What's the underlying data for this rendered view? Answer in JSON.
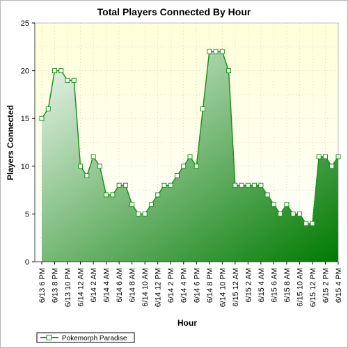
{
  "chart_data": {
    "type": "area",
    "title": "Total Players Connected By Hour",
    "xlabel": "Hour",
    "ylabel": "Players Connected",
    "ylim": [
      0,
      25
    ],
    "yticks": [
      0,
      5,
      10,
      15,
      20,
      25
    ],
    "grid": true,
    "legend_position": "bottom-left",
    "colors": {
      "series": "#1f8f1f",
      "fill_light": "#eef7ee",
      "fill_dark": "#007a00",
      "plot_bg_top": "#ffffd8",
      "plot_bg_bottom": "#ffffff",
      "grid": "#c8c8a0"
    },
    "x_tick_labels": [
      "6/13 6 PM",
      "6/13 8 PM",
      "6/13 10 PM",
      "6/14 12 AM",
      "6/14 2 AM",
      "6/14 4 AM",
      "6/14 6 AM",
      "6/14 8 AM",
      "6/14 10 AM",
      "6/14 12 PM",
      "6/14 2 PM",
      "6/14 4 PM",
      "6/14 6 PM",
      "6/14 8 PM",
      "6/14 10 PM",
      "6/15 12 AM",
      "6/15 2 AM",
      "6/15 4 AM",
      "6/15 6 AM",
      "6/15 8 AM",
      "6/15 10 AM",
      "6/15 12 PM",
      "6/15 2 PM",
      "6/15 4 PM"
    ],
    "series": [
      {
        "name": "Pokemorph Paradise",
        "values": [
          15,
          16,
          20,
          20,
          19,
          19,
          10,
          9,
          11,
          10,
          7,
          7,
          8,
          8,
          6,
          5,
          5,
          6,
          7,
          8,
          8,
          9,
          10,
          11,
          10,
          16,
          22,
          22,
          22,
          20,
          8,
          8,
          8,
          8,
          8,
          7,
          6,
          5,
          6,
          5,
          5,
          4,
          4,
          11,
          11,
          10,
          11
        ]
      }
    ]
  }
}
